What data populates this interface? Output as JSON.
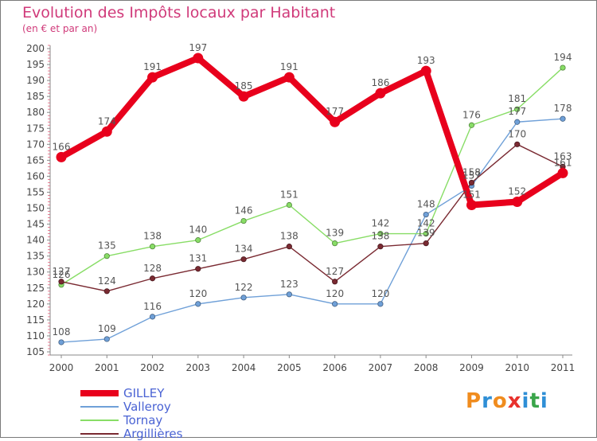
{
  "page": {
    "title": "Evolution des Impôts locaux par Habitant",
    "subtitle": "(en € et par an)",
    "brand": {
      "letters": [
        "P",
        "r",
        "o",
        "x",
        "i",
        "t",
        "i"
      ],
      "colors": [
        "#f08c1e",
        "#2f8fd6",
        "#f08c1e",
        "#e8322d",
        "#2f8fd6",
        "#3aa54a",
        "#2f8fd6"
      ]
    }
  },
  "chart_data": {
    "type": "line",
    "title": "Evolution des Impôts locaux par Habitant",
    "subtitle": "(en € et par an)",
    "xlabel": "",
    "ylabel": "",
    "x": [
      "2000",
      "2001",
      "2002",
      "2003",
      "2004",
      "2005",
      "2006",
      "2007",
      "2008",
      "2009",
      "2010",
      "2011"
    ],
    "yticks": [
      105,
      110,
      115,
      120,
      125,
      130,
      135,
      140,
      145,
      150,
      155,
      160,
      165,
      170,
      175,
      180,
      185,
      190,
      195,
      200
    ],
    "ylim": [
      104,
      201
    ],
    "grid": false,
    "legend_position": "bottom-left",
    "series": [
      {
        "name": "GILLEY",
        "color": "#e8001c",
        "emphasis": true,
        "values": [
          166,
          174,
          191,
          197,
          185,
          191,
          177,
          186,
          193,
          151,
          152,
          161
        ]
      },
      {
        "name": "Valleroy",
        "color": "#6fa0d8",
        "emphasis": false,
        "values": [
          108,
          109,
          116,
          120,
          122,
          123,
          120,
          120,
          148,
          157,
          177,
          178
        ]
      },
      {
        "name": "Tornay",
        "color": "#88dd66",
        "emphasis": false,
        "values": [
          126,
          135,
          138,
          140,
          146,
          151,
          139,
          142,
          142,
          176,
          181,
          194
        ]
      },
      {
        "name": "Argillières",
        "color": "#7a2a32",
        "emphasis": false,
        "values": [
          127,
          124,
          128,
          131,
          134,
          138,
          127,
          138,
          139,
          158,
          170,
          163
        ]
      }
    ]
  }
}
